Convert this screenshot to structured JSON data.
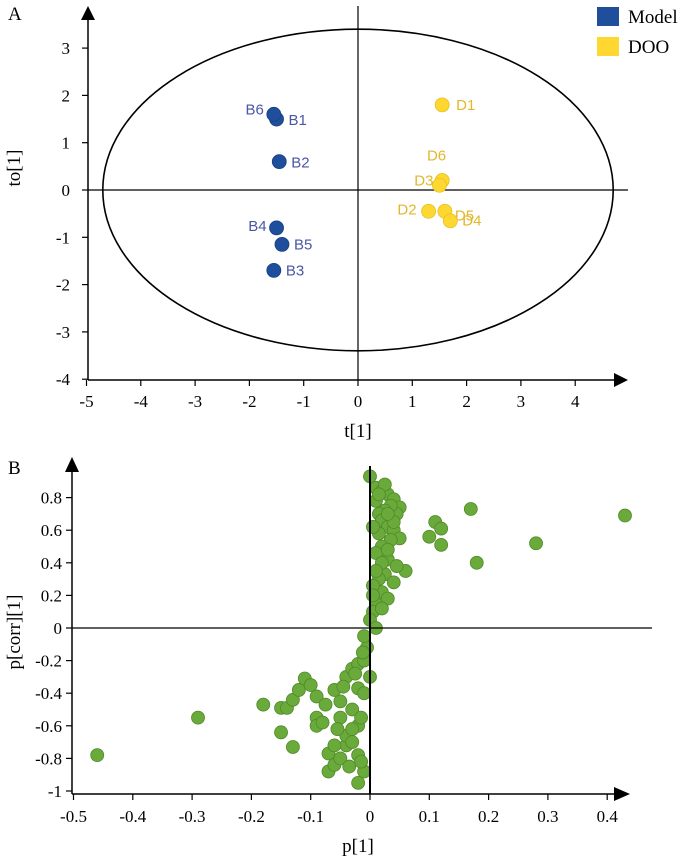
{
  "chart_data": [
    {
      "type": "scatter",
      "panel_label": "A",
      "xlabel": "t[1]",
      "ylabel": "to[1]",
      "xlim": [
        -5,
        5
      ],
      "ylim": [
        -4,
        4
      ],
      "xticks": [
        -5,
        -4,
        -3,
        -2,
        -1,
        0,
        1,
        2,
        3,
        4
      ],
      "yticks": [
        -4,
        -3,
        -2,
        -1,
        0,
        1,
        2,
        3
      ],
      "ellipse": {
        "cx": 0,
        "cy": 0,
        "rx": 4.7,
        "ry": 3.4
      },
      "legend": [
        {
          "name": "Model",
          "color": "#1f4e9c"
        },
        {
          "name": "DOO",
          "color": "#ffd731"
        }
      ],
      "series": [
        {
          "name": "Model",
          "color": "#1f4e9c",
          "label_color": "#4a56a6",
          "points": [
            {
              "label": "B1",
              "x": -1.5,
              "y": 1.5
            },
            {
              "label": "B6",
              "x": -1.55,
              "y": 1.6
            },
            {
              "label": "B2",
              "x": -1.45,
              "y": 0.6
            },
            {
              "label": "B4",
              "x": -1.5,
              "y": -0.8
            },
            {
              "label": "B5",
              "x": -1.4,
              "y": -1.15
            },
            {
              "label": "B3",
              "x": -1.55,
              "y": -1.7
            }
          ]
        },
        {
          "name": "DOO",
          "color": "#ffd731",
          "label_color": "#e3b72a",
          "points": [
            {
              "label": "D1",
              "x": 1.55,
              "y": 1.8
            },
            {
              "label": "D6",
              "x": 1.55,
              "y": 0.2
            },
            {
              "label": "D3",
              "x": 1.5,
              "y": 0.1
            },
            {
              "label": "D5",
              "x": 1.6,
              "y": -0.45
            },
            {
              "label": "D2",
              "x": 1.3,
              "y": -0.45
            },
            {
              "label": "D4",
              "x": 1.7,
              "y": -0.65
            }
          ]
        }
      ]
    },
    {
      "type": "scatter",
      "panel_label": "B",
      "xlabel": "p[1]",
      "ylabel": "p[corr][1]",
      "xlim": [
        -0.5,
        0.45
      ],
      "ylim": [
        -1,
        0.95
      ],
      "xticks": [
        "-0.5",
        "-0.4",
        "-0.3",
        "-0.2",
        "-0.1",
        "0",
        "0.1",
        "0.2",
        "0.3",
        "0.4"
      ],
      "yticks": [
        "-1",
        "-0.8",
        "-0.6",
        "-0.4",
        "-0.2",
        "0",
        "0.2",
        "0.4",
        "0.6",
        "0.8"
      ],
      "color": "#6aaa3a",
      "points": [
        [
          0.43,
          0.69
        ],
        [
          0.28,
          0.52
        ],
        [
          0.18,
          0.4
        ],
        [
          0.17,
          0.73
        ],
        [
          0.11,
          0.65
        ],
        [
          0.12,
          0.61
        ],
        [
          0.1,
          0.56
        ],
        [
          0.12,
          0.51
        ],
        [
          -0.46,
          -0.78
        ],
        [
          -0.29,
          -0.55
        ],
        [
          -0.18,
          -0.47
        ],
        [
          -0.15,
          -0.49
        ],
        [
          -0.15,
          -0.64
        ],
        [
          -0.13,
          -0.73
        ],
        [
          -0.14,
          -0.49
        ],
        [
          -0.13,
          -0.44
        ],
        [
          -0.12,
          -0.38
        ],
        [
          -0.11,
          -0.31
        ],
        [
          -0.1,
          -0.35
        ],
        [
          -0.09,
          -0.42
        ],
        [
          -0.09,
          -0.55
        ],
        [
          -0.09,
          -0.6
        ],
        [
          -0.07,
          -0.77
        ],
        [
          -0.07,
          -0.88
        ],
        [
          -0.06,
          -0.84
        ],
        [
          -0.05,
          -0.8
        ],
        [
          -0.04,
          -0.72
        ],
        [
          -0.04,
          -0.66
        ],
        [
          -0.05,
          -0.55
        ],
        [
          -0.05,
          -0.45
        ],
        [
          -0.06,
          -0.38
        ],
        [
          -0.04,
          -0.3
        ],
        [
          -0.03,
          -0.25
        ],
        [
          -0.02,
          -0.22
        ],
        [
          -0.02,
          -0.37
        ],
        [
          -0.03,
          -0.5
        ],
        [
          -0.02,
          -0.6
        ],
        [
          -0.03,
          -0.7
        ],
        [
          -0.02,
          -0.78
        ],
        [
          -0.01,
          -0.88
        ],
        [
          -0.02,
          -0.95
        ],
        [
          -0.01,
          -0.4
        ],
        [
          -0.01,
          -0.2
        ],
        [
          -0.005,
          -0.12
        ],
        [
          -0.01,
          -0.05
        ],
        [
          0.0,
          -0.3
        ],
        [
          -0.015,
          -0.55
        ],
        [
          -0.035,
          -0.85
        ],
        [
          -0.055,
          -0.62
        ],
        [
          -0.075,
          -0.47
        ],
        [
          -0.045,
          -0.36
        ],
        [
          -0.025,
          -0.28
        ],
        [
          -0.012,
          -0.15
        ],
        [
          -0.06,
          -0.72
        ],
        [
          -0.08,
          -0.58
        ],
        [
          -0.03,
          -0.62
        ],
        [
          -0.015,
          -0.82
        ],
        [
          0.0,
          0.93
        ],
        [
          0.01,
          0.86
        ],
        [
          0.02,
          0.84
        ],
        [
          0.03,
          0.82
        ],
        [
          0.04,
          0.79
        ],
        [
          0.05,
          0.74
        ],
        [
          0.045,
          0.7
        ],
        [
          0.035,
          0.75
        ],
        [
          0.025,
          0.72
        ],
        [
          0.015,
          0.7
        ],
        [
          0.02,
          0.66
        ],
        [
          0.03,
          0.62
        ],
        [
          0.04,
          0.6
        ],
        [
          0.05,
          0.55
        ],
        [
          0.035,
          0.54
        ],
        [
          0.02,
          0.5
        ],
        [
          0.01,
          0.46
        ],
        [
          0.03,
          0.42
        ],
        [
          0.06,
          0.35
        ],
        [
          0.045,
          0.38
        ],
        [
          0.025,
          0.33
        ],
        [
          0.015,
          0.3
        ],
        [
          0.02,
          0.22
        ],
        [
          0.03,
          0.18
        ],
        [
          0.01,
          0.15
        ],
        [
          0.005,
          0.1
        ],
        [
          0.0,
          0.05
        ],
        [
          0.01,
          0.0
        ],
        [
          0.005,
          0.26
        ],
        [
          0.015,
          0.58
        ],
        [
          0.01,
          0.78
        ],
        [
          0.025,
          0.88
        ],
        [
          0.04,
          0.65
        ],
        [
          0.03,
          0.48
        ],
        [
          0.02,
          0.4
        ],
        [
          0.005,
          0.62
        ],
        [
          0.01,
          0.35
        ],
        [
          0.04,
          0.28
        ],
        [
          0.02,
          0.12
        ],
        [
          0.005,
          0.2
        ],
        [
          0.03,
          0.7
        ],
        [
          0.015,
          0.82
        ]
      ]
    }
  ]
}
